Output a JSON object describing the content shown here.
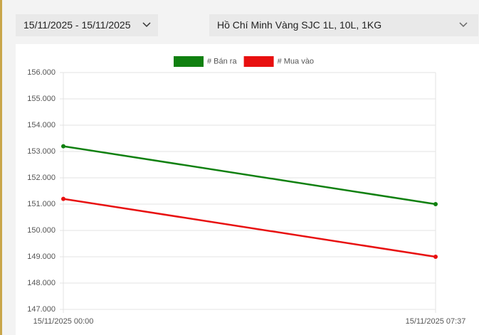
{
  "filters": {
    "date_range": "15/11/2025 - 15/11/2025",
    "location": "Hồ Chí Minh Vàng SJC 1L, 10L, 1KG"
  },
  "chart_data": {
    "type": "line",
    "categories": [
      "15/11/2025 00:00",
      "15/11/2025 07:37"
    ],
    "series": [
      {
        "name": "# Bán ra",
        "color": "#108010",
        "values": [
          153200,
          151000
        ]
      },
      {
        "name": "# Mua vào",
        "color": "#e81010",
        "values": [
          151200,
          149000
        ]
      }
    ],
    "ylim": [
      147000,
      156000
    ],
    "yticks": [
      {
        "value": 147000,
        "label": "147.000"
      },
      {
        "value": 148000,
        "label": "148.000"
      },
      {
        "value": 149000,
        "label": "149.000"
      },
      {
        "value": 150000,
        "label": "150.000"
      },
      {
        "value": 151000,
        "label": "151.000"
      },
      {
        "value": 152000,
        "label": "152.000"
      },
      {
        "value": 153000,
        "label": "153.000"
      },
      {
        "value": 154000,
        "label": "154.000"
      },
      {
        "value": 155000,
        "label": "155.000"
      },
      {
        "value": 156000,
        "label": "156.000"
      }
    ],
    "grid": true,
    "legend": "top"
  }
}
